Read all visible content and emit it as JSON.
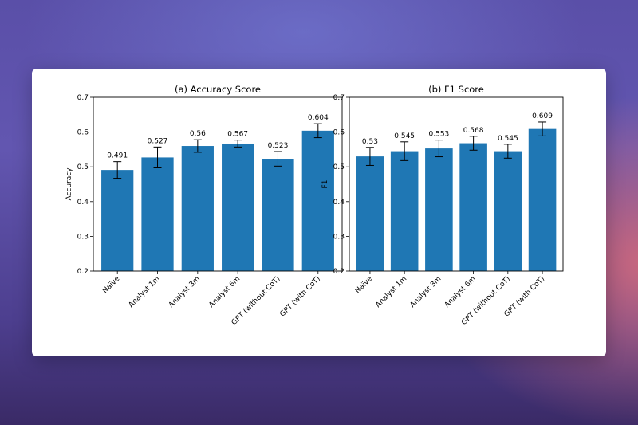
{
  "chart_data": [
    {
      "type": "bar",
      "title": "(a) Accuracy Score",
      "xlabel": "",
      "ylabel": "Accuracy",
      "ylim": [
        0.2,
        0.7
      ],
      "yticks": [
        "0.2",
        "0.3",
        "0.4",
        "0.5",
        "0.6",
        "0.7"
      ],
      "categories": [
        "Naïve",
        "Analyst 1m",
        "Analyst 3m",
        "Analyst 6m",
        "GPT (without CoT)",
        "GPT (with CoT)"
      ],
      "values": [
        0.491,
        0.527,
        0.56,
        0.567,
        0.523,
        0.604
      ],
      "value_labels": [
        "0.491",
        "0.527",
        "0.56",
        "0.567",
        "0.523",
        "0.604"
      ],
      "errors": [
        0.024,
        0.03,
        0.018,
        0.01,
        0.021,
        0.02
      ],
      "bar_color": "#1f77b4"
    },
    {
      "type": "bar",
      "title": "(b) F1 Score",
      "xlabel": "",
      "ylabel": "F1",
      "ylim": [
        0.2,
        0.7
      ],
      "yticks": [
        "0.2",
        "0.3",
        "0.4",
        "0.5",
        "0.6",
        "0.7"
      ],
      "categories": [
        "Naïve",
        "Analyst 1m",
        "Analyst 3m",
        "Analyst 6m",
        "GPT (without CoT)",
        "GPT (with CoT)"
      ],
      "values": [
        0.53,
        0.545,
        0.553,
        0.568,
        0.545,
        0.609
      ],
      "value_labels": [
        "0.53",
        "0.545",
        "0.553",
        "0.568",
        "0.545",
        "0.609"
      ],
      "errors": [
        0.026,
        0.027,
        0.024,
        0.02,
        0.02,
        0.02
      ],
      "bar_color": "#1f77b4"
    }
  ]
}
